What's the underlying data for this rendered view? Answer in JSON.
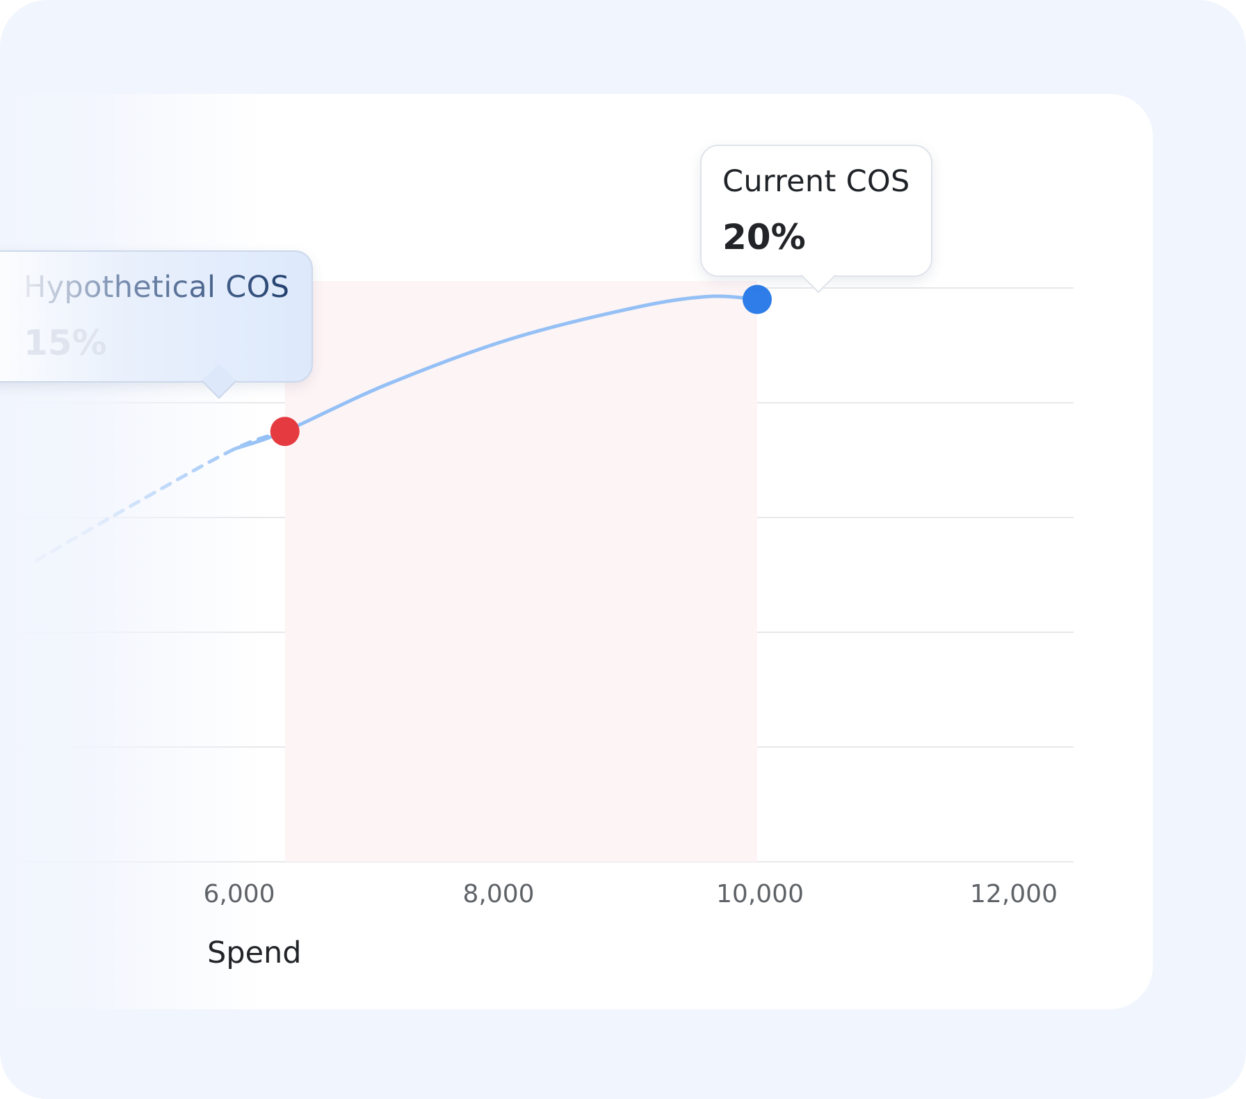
{
  "chart_data": {
    "type": "line",
    "xlabel": "Spend",
    "ylabel": "",
    "x_ticks": [
      "6,000",
      "8,000",
      "10,000",
      "12,000"
    ],
    "xlim": [
      4200,
      12400
    ],
    "ylim": [
      0,
      24
    ],
    "grid": true,
    "curve_points": [
      [
        4200,
        10.5
      ],
      [
        5000,
        12.5
      ],
      [
        5800,
        14.4
      ],
      [
        6200,
        15
      ],
      [
        7000,
        16.6
      ],
      [
        8000,
        18.2
      ],
      [
        9000,
        19.3
      ],
      [
        9600,
        19.7
      ],
      [
        10000,
        19.6
      ]
    ],
    "shaded_range": [
      6200,
      10000
    ],
    "markers": [
      {
        "label": "Hypothetical COS",
        "value": "15%",
        "x": 6200,
        "y": 15,
        "color": "#e53a3f"
      },
      {
        "label": "Current COS",
        "value": "20%",
        "x": 10000,
        "y": 19.6,
        "color": "#2e7de8"
      }
    ],
    "colors": {
      "line": "#94c0f5",
      "shade": "#fdf4f5",
      "grid": "#e8e8ea"
    }
  }
}
